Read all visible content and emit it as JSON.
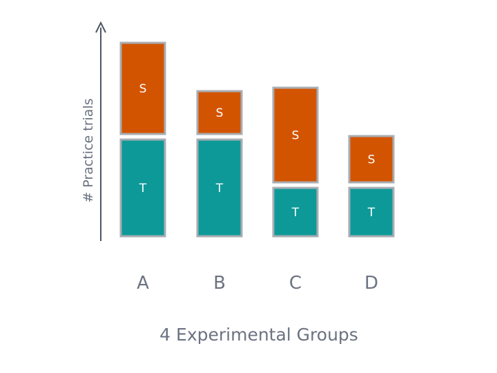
{
  "chart_data": {
    "type": "bar",
    "stacked": true,
    "categories": [
      "A",
      "B",
      "C",
      "D"
    ],
    "series": [
      {
        "name": "T",
        "values": [
          140,
          140,
          70,
          70
        ],
        "color": "#0e9999"
      },
      {
        "name": "S",
        "values": [
          140,
          70,
          145,
          75
        ],
        "color": "#d35400"
      }
    ],
    "xlabel": "4 Experimental Groups",
    "ylabel": "# Practice trials",
    "ylim": [
      0,
      305
    ],
    "axis_color": "#4b5563",
    "border_color": "#a9adb3",
    "grid": false,
    "legend": "none"
  }
}
